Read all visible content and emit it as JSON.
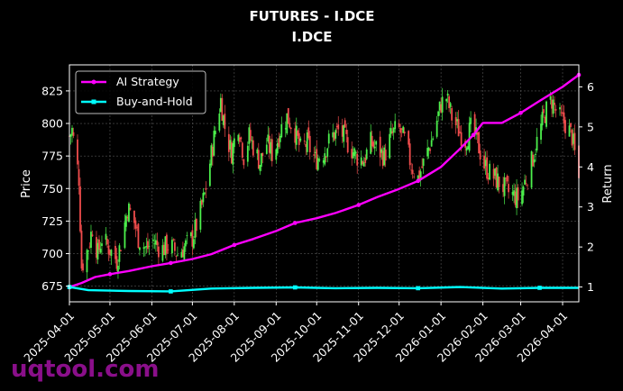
{
  "chart_data": {
    "type": "line",
    "title": "FUTURES - I.DCE",
    "subtitle": "I.DCE",
    "ylabel_left": "Price",
    "ylabel_right": "Return",
    "xlabel": "",
    "x_ticks": [
      "2025-04-01",
      "2025-05-01",
      "2025-06-01",
      "2025-07-01",
      "2025-08-01",
      "2025-09-01",
      "2025-10-01",
      "2025-11-01",
      "2025-12-01",
      "2026-01-01",
      "2026-02-01",
      "2026-03-01",
      "2026-04-01"
    ],
    "x_range": [
      "2025-04-01",
      "2026-04-13"
    ],
    "y_left_ticks": [
      675,
      700,
      725,
      750,
      775,
      800,
      825
    ],
    "y_left_range": [
      663,
      845
    ],
    "y_right_ticks": [
      1,
      2,
      3,
      4,
      5,
      6
    ],
    "y_right_range": [
      0.63,
      6.55
    ],
    "grid": true,
    "legend_position": "upper left",
    "colors": {
      "up": "#4cf04c",
      "down": "#f04c4c",
      "ai": "#ff00ff",
      "bh": "#00ffff",
      "grid": "#555555"
    },
    "price_series": {
      "name": "Price",
      "points": [
        [
          "2025-04-01",
          790
        ],
        [
          "2025-04-03",
          795
        ],
        [
          "2025-04-08",
          758
        ],
        [
          "2025-04-10",
          690
        ],
        [
          "2025-04-15",
          705
        ],
        [
          "2025-04-18",
          720
        ],
        [
          "2025-04-22",
          700
        ],
        [
          "2025-04-25",
          712
        ],
        [
          "2025-05-01",
          703
        ],
        [
          "2025-05-06",
          695
        ],
        [
          "2025-05-10",
          712
        ],
        [
          "2025-05-14",
          735
        ],
        [
          "2025-05-18",
          728
        ],
        [
          "2025-05-22",
          712
        ],
        [
          "2025-05-28",
          703
        ],
        [
          "2025-06-02",
          710
        ],
        [
          "2025-06-08",
          703
        ],
        [
          "2025-06-14",
          707
        ],
        [
          "2025-06-20",
          700
        ],
        [
          "2025-06-26",
          706
        ],
        [
          "2025-07-01",
          712
        ],
        [
          "2025-07-06",
          728
        ],
        [
          "2025-07-10",
          745
        ],
        [
          "2025-07-14",
          770
        ],
        [
          "2025-07-18",
          795
        ],
        [
          "2025-07-22",
          818
        ],
        [
          "2025-07-26",
          790
        ],
        [
          "2025-07-30",
          778
        ],
        [
          "2025-08-04",
          800
        ],
        [
          "2025-08-08",
          775
        ],
        [
          "2025-08-12",
          790
        ],
        [
          "2025-08-16",
          780
        ],
        [
          "2025-08-20",
          770
        ],
        [
          "2025-08-25",
          785
        ],
        [
          "2025-08-30",
          775
        ],
        [
          "2025-09-04",
          795
        ],
        [
          "2025-09-09",
          805
        ],
        [
          "2025-09-14",
          797
        ],
        [
          "2025-09-19",
          780
        ],
        [
          "2025-09-24",
          785
        ],
        [
          "2025-09-30",
          772
        ],
        [
          "2025-10-06",
          778
        ],
        [
          "2025-10-12",
          790
        ],
        [
          "2025-10-18",
          795
        ],
        [
          "2025-10-24",
          785
        ],
        [
          "2025-10-30",
          775
        ],
        [
          "2025-11-05",
          772
        ],
        [
          "2025-11-10",
          785
        ],
        [
          "2025-11-15",
          780
        ],
        [
          "2025-11-20",
          775
        ],
        [
          "2025-11-25",
          790
        ],
        [
          "2025-11-30",
          797
        ],
        [
          "2025-12-05",
          787
        ],
        [
          "2025-12-10",
          768
        ],
        [
          "2025-12-15",
          758
        ],
        [
          "2025-12-20",
          772
        ],
        [
          "2025-12-26",
          790
        ],
        [
          "2026-01-01",
          815
        ],
        [
          "2026-01-05",
          820
        ],
        [
          "2026-01-09",
          805
        ],
        [
          "2026-01-14",
          795
        ],
        [
          "2026-01-19",
          787
        ],
        [
          "2026-01-24",
          798
        ],
        [
          "2026-01-28",
          785
        ],
        [
          "2026-02-02",
          768
        ],
        [
          "2026-02-06",
          762
        ],
        [
          "2026-02-10",
          758
        ],
        [
          "2026-02-20",
          747
        ],
        [
          "2026-02-28",
          742
        ],
        [
          "2026-03-04",
          755
        ],
        [
          "2026-03-09",
          770
        ],
        [
          "2026-03-14",
          790
        ],
        [
          "2026-03-19",
          808
        ],
        [
          "2026-03-24",
          818
        ],
        [
          "2026-03-29",
          805
        ],
        [
          "2026-04-03",
          800
        ],
        [
          "2026-04-08",
          790
        ],
        [
          "2026-04-13",
          757
        ]
      ]
    },
    "series": [
      {
        "name": "AI Strategy",
        "points": [
          [
            "2025-04-01",
            1.0
          ],
          [
            "2025-04-10",
            1.1
          ],
          [
            "2025-04-20",
            1.25
          ],
          [
            "2025-05-01",
            1.32
          ],
          [
            "2025-05-15",
            1.4
          ],
          [
            "2025-06-01",
            1.52
          ],
          [
            "2025-06-15",
            1.6
          ],
          [
            "2025-07-01",
            1.7
          ],
          [
            "2025-07-15",
            1.82
          ],
          [
            "2025-08-01",
            2.05
          ],
          [
            "2025-08-15",
            2.2
          ],
          [
            "2025-09-01",
            2.4
          ],
          [
            "2025-09-15",
            2.6
          ],
          [
            "2025-10-01",
            2.72
          ],
          [
            "2025-10-15",
            2.85
          ],
          [
            "2025-11-01",
            3.05
          ],
          [
            "2025-11-15",
            3.25
          ],
          [
            "2025-12-01",
            3.45
          ],
          [
            "2025-12-15",
            3.65
          ],
          [
            "2026-01-01",
            4.0
          ],
          [
            "2026-01-15",
            4.45
          ],
          [
            "2026-01-25",
            4.8
          ],
          [
            "2026-02-01",
            5.1
          ],
          [
            "2026-02-15",
            5.1
          ],
          [
            "2026-03-01",
            5.35
          ],
          [
            "2026-03-15",
            5.65
          ],
          [
            "2026-04-01",
            6.0
          ],
          [
            "2026-04-13",
            6.3
          ]
        ]
      },
      {
        "name": "Buy-and-Hold",
        "points": [
          [
            "2025-04-01",
            1.0
          ],
          [
            "2025-04-15",
            0.92
          ],
          [
            "2025-05-15",
            0.9
          ],
          [
            "2025-06-15",
            0.89
          ],
          [
            "2025-07-15",
            0.96
          ],
          [
            "2025-08-15",
            0.98
          ],
          [
            "2025-09-15",
            0.99
          ],
          [
            "2025-10-15",
            0.97
          ],
          [
            "2025-11-15",
            0.98
          ],
          [
            "2025-12-15",
            0.97
          ],
          [
            "2026-01-15",
            1.0
          ],
          [
            "2026-02-15",
            0.96
          ],
          [
            "2026-03-15",
            0.98
          ],
          [
            "2026-04-13",
            0.98
          ]
        ]
      }
    ]
  },
  "watermark": "uqtool.com"
}
